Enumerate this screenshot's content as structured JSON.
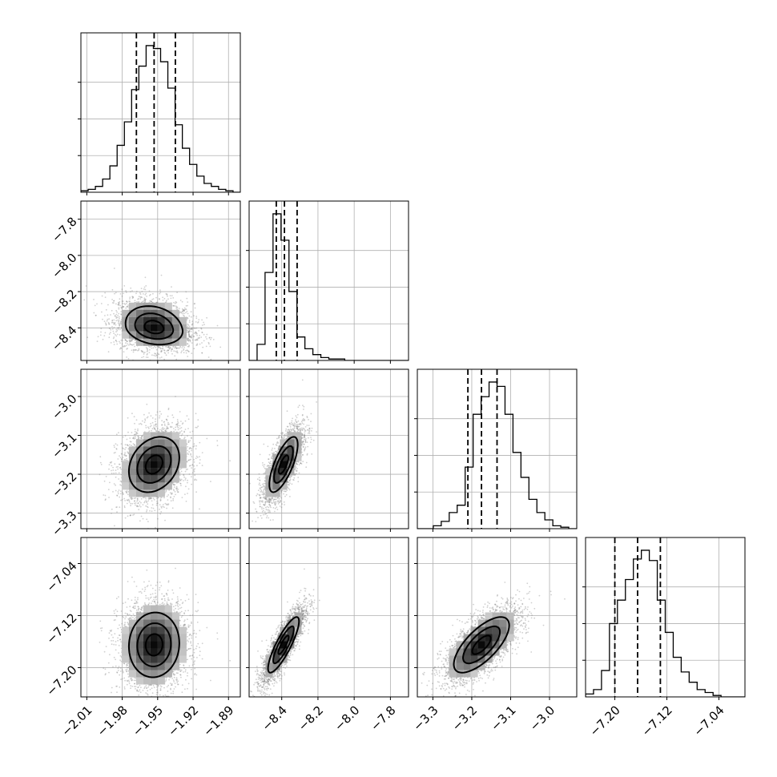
{
  "chart_data": {
    "type": "corner",
    "grid": true,
    "parameters": [
      {
        "range": [
          -2.015,
          -1.88
        ],
        "ticks": [
          -2.01,
          -1.98,
          -1.95,
          -1.92,
          -1.89
        ],
        "tick_labels": [
          "−2.01",
          "−1.98",
          "−1.95",
          "−1.92",
          "−1.89"
        ],
        "quantiles": [
          -1.968,
          -1.953,
          -1.935
        ]
      },
      {
        "range": [
          -8.58,
          -7.7
        ],
        "ticks": [
          -8.4,
          -8.2,
          -8.0,
          -7.8
        ],
        "tick_labels": [
          "−8.4",
          "−8.2",
          "−8.0",
          "−7.8"
        ],
        "quantiles": [
          -8.43,
          -8.385,
          -8.315
        ]
      },
      {
        "range": [
          -3.34,
          -2.93
        ],
        "ticks": [
          -3.3,
          -3.2,
          -3.1,
          -3.0
        ],
        "tick_labels": [
          "−3.3",
          "−3.2",
          "−3.1",
          "−3.0"
        ],
        "quantiles": [
          -3.21,
          -3.175,
          -3.135
        ]
      },
      {
        "range": [
          -7.245,
          -7.0
        ],
        "ticks": [
          -7.2,
          -7.12,
          -7.04
        ],
        "tick_labels": [
          "−7.20",
          "−7.12",
          "−7.04"
        ],
        "quantiles": [
          -7.2,
          -7.165,
          -7.13
        ]
      }
    ],
    "histograms": [
      {
        "counts": [
          0.01,
          0.02,
          0.04,
          0.09,
          0.18,
          0.32,
          0.48,
          0.7,
          0.86,
          1.0,
          0.98,
          0.89,
          0.71,
          0.46,
          0.3,
          0.19,
          0.11,
          0.06,
          0.04,
          0.02,
          0.01,
          0.0
        ]
      },
      {
        "counts": [
          0.0,
          0.11,
          0.6,
          1.0,
          0.82,
          0.47,
          0.16,
          0.08,
          0.04,
          0.02,
          0.01,
          0.01,
          0.0,
          0.0,
          0.0,
          0.0,
          0.0,
          0.0,
          0.0,
          0.0
        ]
      },
      {
        "counts": [
          0.0,
          0.0,
          0.02,
          0.05,
          0.11,
          0.16,
          0.42,
          0.78,
          0.9,
          1.0,
          0.97,
          0.78,
          0.52,
          0.35,
          0.2,
          0.11,
          0.06,
          0.02,
          0.01,
          0.0
        ]
      },
      {
        "counts": [
          0.02,
          0.05,
          0.18,
          0.5,
          0.66,
          0.8,
          0.94,
          1.0,
          0.93,
          0.66,
          0.44,
          0.27,
          0.17,
          0.1,
          0.05,
          0.03,
          0.01,
          0.0,
          0.0,
          0.0
        ]
      }
    ],
    "pairs": [
      {
        "x_param": 0,
        "y_param": 1,
        "center": [
          -1.953,
          -8.4
        ],
        "sigma": [
          0.017,
          0.065
        ],
        "corr": -0.2,
        "skew_y": 1.3
      },
      {
        "x_param": 0,
        "y_param": 2,
        "center": [
          -1.953,
          -3.175
        ],
        "sigma": [
          0.015,
          0.05
        ],
        "corr": 0.25,
        "skew_y": 0.0
      },
      {
        "x_param": 1,
        "y_param": 2,
        "center": [
          -8.39,
          -3.175
        ],
        "sigma": [
          0.055,
          0.05
        ],
        "corr": 0.72,
        "skew_y": 0.0
      },
      {
        "x_param": 0,
        "y_param": 3,
        "center": [
          -1.953,
          -7.165
        ],
        "sigma": [
          0.015,
          0.035
        ],
        "corr": 0.05,
        "skew_y": 0.0
      },
      {
        "x_param": 1,
        "y_param": 3,
        "center": [
          -8.39,
          -7.165
        ],
        "sigma": [
          0.06,
          0.03
        ],
        "corr": 0.85,
        "skew_y": 0.0
      },
      {
        "x_param": 2,
        "y_param": 3,
        "center": [
          -3.175,
          -7.165
        ],
        "sigma": [
          0.05,
          0.03
        ],
        "corr": 0.7,
        "skew_y": 0.0
      }
    ],
    "levels": [
      0.118,
      0.393,
      0.675,
      0.864
    ],
    "colors": {
      "ink": "#000000",
      "grid": "#b0b0b0",
      "points": "#777777",
      "background": "#ffffff"
    }
  }
}
